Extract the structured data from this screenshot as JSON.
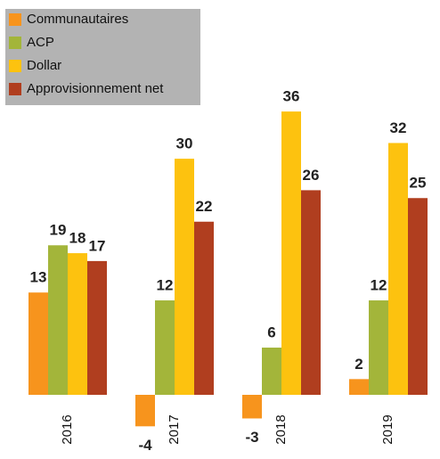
{
  "chart_data": {
    "type": "bar",
    "categories": [
      "2016",
      "2017",
      "2018",
      "2019"
    ],
    "series": [
      {
        "name": "Communautaires",
        "color": "#f7941d",
        "values": [
          13,
          -4,
          -3,
          2
        ]
      },
      {
        "name": "ACP",
        "color": "#a3b53a",
        "values": [
          19,
          12,
          6,
          12
        ]
      },
      {
        "name": "Dollar",
        "color": "#fdc20f",
        "values": [
          18,
          30,
          36,
          32
        ]
      },
      {
        "name": "Approvisionnement net",
        "color": "#b03e1f",
        "values": [
          17,
          22,
          26,
          25
        ]
      }
    ],
    "legend": "top-left"
  }
}
